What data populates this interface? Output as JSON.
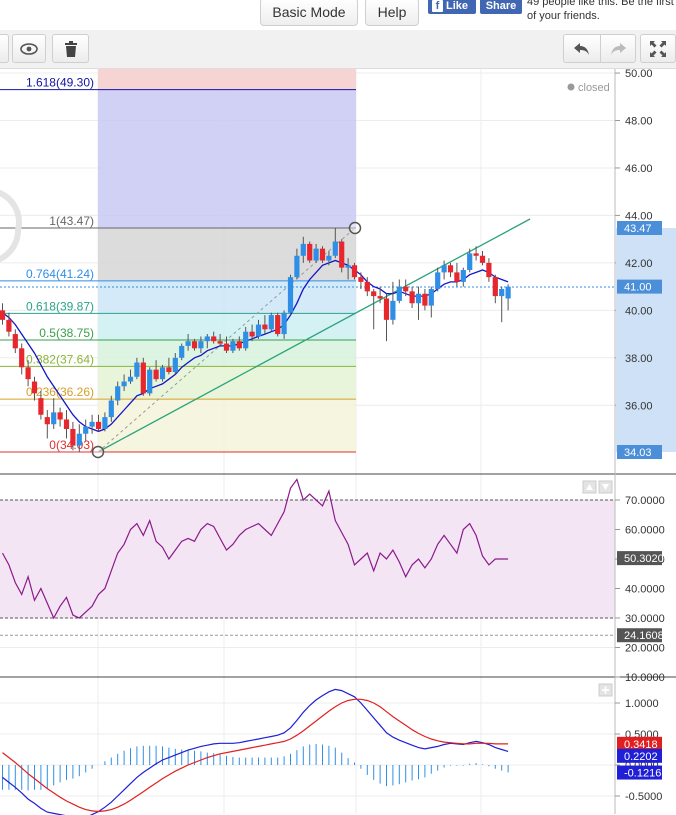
{
  "header": {
    "basic_mode_label": "Basic Mode",
    "help_label": "Help",
    "fb_like_label": "Like",
    "fb_share_label": "Share",
    "fb_text": "49 people like this. Be the first of your friends."
  },
  "toolbar": {
    "eye_icon": "eye-icon",
    "trash_icon": "trash-icon",
    "undo_icon": "undo-icon",
    "redo_icon": "redo-icon",
    "fullscreen_icon": "fullscreen-icon"
  },
  "colors": {
    "up_candle": "#2f8fe6",
    "down_candle": "#e8262d",
    "ma_line": "#1414c8",
    "rsi_line": "#8b1a8b",
    "macd_line": "#1f1fd6",
    "signal_line": "#e02020",
    "trendline": "#2aa37a"
  },
  "chart_data": [
    {
      "type": "candlestick",
      "status": "closed",
      "ylim": [
        34.0,
        50.0
      ],
      "y_ticks": [
        "50.00",
        "48.00",
        "46.00",
        "44.00",
        "42.00",
        "40.00",
        "38.00",
        "36.00"
      ],
      "price_badges": [
        {
          "label": "43.47",
          "value": 43.47,
          "color": "#4a8fd8"
        },
        {
          "label": "41.00",
          "value": 41.0,
          "color": "#4a8fd8"
        },
        {
          "label": "34.03",
          "value": 34.03,
          "color": "#4a8fd8"
        }
      ],
      "fibonacci": [
        {
          "label": "1.618(49.30)",
          "value": 49.3
        },
        {
          "label": "1(43.47)",
          "value": 43.47
        },
        {
          "label": "0.764(41.24)",
          "value": 41.24
        },
        {
          "label": "0.618(39.87)",
          "value": 39.87
        },
        {
          "label": "0.5(38.75)",
          "value": 38.75
        },
        {
          "label": "0.382(37.64)",
          "value": 37.64
        },
        {
          "label": "0.236(36.26)",
          "value": 36.26
        },
        {
          "label": "0(34.03)",
          "value": 34.03
        }
      ],
      "candles": [
        {
          "o": 40.0,
          "h": 40.3,
          "l": 39.4,
          "c": 39.6
        },
        {
          "o": 39.6,
          "h": 39.9,
          "l": 38.9,
          "c": 39.1
        },
        {
          "o": 39.0,
          "h": 39.2,
          "l": 38.2,
          "c": 38.4
        },
        {
          "o": 38.4,
          "h": 38.6,
          "l": 37.3,
          "c": 37.6
        },
        {
          "o": 37.6,
          "h": 37.9,
          "l": 36.8,
          "c": 37.1
        },
        {
          "o": 37.0,
          "h": 37.2,
          "l": 36.2,
          "c": 36.5
        },
        {
          "o": 36.3,
          "h": 36.6,
          "l": 35.4,
          "c": 35.6
        },
        {
          "o": 35.5,
          "h": 35.8,
          "l": 34.6,
          "c": 35.2
        },
        {
          "o": 35.2,
          "h": 36.3,
          "l": 35.0,
          "c": 35.7
        },
        {
          "o": 35.7,
          "h": 35.9,
          "l": 35.1,
          "c": 35.4
        },
        {
          "o": 35.4,
          "h": 35.8,
          "l": 34.6,
          "c": 35.0
        },
        {
          "o": 35.0,
          "h": 35.3,
          "l": 34.1,
          "c": 34.3
        },
        {
          "o": 34.3,
          "h": 35.2,
          "l": 34.03,
          "c": 34.8
        },
        {
          "o": 34.8,
          "h": 35.4,
          "l": 34.5,
          "c": 35.1
        },
        {
          "o": 35.1,
          "h": 35.6,
          "l": 34.8,
          "c": 35.3
        },
        {
          "o": 35.3,
          "h": 35.6,
          "l": 34.9,
          "c": 35.0
        },
        {
          "o": 35.0,
          "h": 35.7,
          "l": 34.9,
          "c": 35.5
        },
        {
          "o": 35.5,
          "h": 36.4,
          "l": 35.3,
          "c": 36.2
        },
        {
          "o": 36.2,
          "h": 37.0,
          "l": 36.0,
          "c": 36.8
        },
        {
          "o": 36.8,
          "h": 37.3,
          "l": 36.6,
          "c": 37.0
        },
        {
          "o": 37.0,
          "h": 37.5,
          "l": 36.9,
          "c": 37.2
        },
        {
          "o": 37.2,
          "h": 38.0,
          "l": 37.1,
          "c": 37.8
        },
        {
          "o": 37.8,
          "h": 38.0,
          "l": 36.4,
          "c": 36.5
        },
        {
          "o": 36.5,
          "h": 37.6,
          "l": 36.4,
          "c": 37.5
        },
        {
          "o": 37.5,
          "h": 37.9,
          "l": 37.0,
          "c": 37.1
        },
        {
          "o": 37.1,
          "h": 37.7,
          "l": 37.0,
          "c": 37.6
        },
        {
          "o": 37.6,
          "h": 38.0,
          "l": 37.3,
          "c": 37.4
        },
        {
          "o": 37.4,
          "h": 38.2,
          "l": 37.3,
          "c": 38.0
        },
        {
          "o": 38.0,
          "h": 38.6,
          "l": 37.9,
          "c": 38.5
        },
        {
          "o": 38.5,
          "h": 39.0,
          "l": 38.3,
          "c": 38.7
        },
        {
          "o": 38.7,
          "h": 38.8,
          "l": 38.3,
          "c": 38.4
        },
        {
          "o": 38.4,
          "h": 38.9,
          "l": 38.2,
          "c": 38.7
        },
        {
          "o": 38.7,
          "h": 39.0,
          "l": 38.4,
          "c": 38.9
        },
        {
          "o": 38.9,
          "h": 39.1,
          "l": 38.6,
          "c": 38.7
        },
        {
          "o": 38.7,
          "h": 39.0,
          "l": 38.5,
          "c": 38.6
        },
        {
          "o": 38.6,
          "h": 38.9,
          "l": 38.2,
          "c": 38.3
        },
        {
          "o": 38.3,
          "h": 38.8,
          "l": 38.2,
          "c": 38.7
        },
        {
          "o": 38.7,
          "h": 38.9,
          "l": 38.3,
          "c": 38.4
        },
        {
          "o": 38.4,
          "h": 39.3,
          "l": 38.3,
          "c": 39.1
        },
        {
          "o": 39.1,
          "h": 39.4,
          "l": 38.7,
          "c": 38.9
        },
        {
          "o": 38.9,
          "h": 39.6,
          "l": 38.8,
          "c": 39.4
        },
        {
          "o": 39.4,
          "h": 39.8,
          "l": 39.0,
          "c": 39.2
        },
        {
          "o": 39.2,
          "h": 39.9,
          "l": 39.1,
          "c": 39.8
        },
        {
          "o": 39.8,
          "h": 39.9,
          "l": 38.9,
          "c": 39.0
        },
        {
          "o": 39.0,
          "h": 40.0,
          "l": 38.8,
          "c": 39.9
        },
        {
          "o": 39.9,
          "h": 41.5,
          "l": 39.8,
          "c": 41.4
        },
        {
          "o": 41.4,
          "h": 42.6,
          "l": 41.3,
          "c": 42.3
        },
        {
          "o": 42.3,
          "h": 43.1,
          "l": 42.0,
          "c": 42.8
        },
        {
          "o": 42.8,
          "h": 42.9,
          "l": 42.0,
          "c": 42.1
        },
        {
          "o": 42.1,
          "h": 42.8,
          "l": 42.0,
          "c": 42.6
        },
        {
          "o": 42.6,
          "h": 42.7,
          "l": 42.0,
          "c": 42.1
        },
        {
          "o": 42.1,
          "h": 42.5,
          "l": 41.9,
          "c": 42.3
        },
        {
          "o": 42.3,
          "h": 43.47,
          "l": 42.2,
          "c": 42.9
        },
        {
          "o": 42.9,
          "h": 43.0,
          "l": 41.6,
          "c": 41.8
        },
        {
          "o": 41.8,
          "h": 42.2,
          "l": 41.3,
          "c": 41.9
        },
        {
          "o": 41.9,
          "h": 42.0,
          "l": 41.3,
          "c": 41.4
        },
        {
          "o": 41.4,
          "h": 41.6,
          "l": 40.9,
          "c": 41.2
        },
        {
          "o": 41.2,
          "h": 41.4,
          "l": 40.6,
          "c": 40.8
        },
        {
          "o": 40.8,
          "h": 40.9,
          "l": 39.2,
          "c": 40.6
        },
        {
          "o": 40.6,
          "h": 41.0,
          "l": 40.3,
          "c": 40.5
        },
        {
          "o": 40.5,
          "h": 40.7,
          "l": 38.7,
          "c": 39.6
        },
        {
          "o": 39.6,
          "h": 41.2,
          "l": 39.4,
          "c": 40.4
        },
        {
          "o": 40.4,
          "h": 41.3,
          "l": 40.3,
          "c": 41.0
        },
        {
          "o": 41.0,
          "h": 41.3,
          "l": 40.6,
          "c": 40.8
        },
        {
          "o": 40.8,
          "h": 41.0,
          "l": 40.1,
          "c": 40.3
        },
        {
          "o": 40.3,
          "h": 41.0,
          "l": 39.6,
          "c": 40.7
        },
        {
          "o": 40.7,
          "h": 40.9,
          "l": 40.0,
          "c": 40.2
        },
        {
          "o": 40.2,
          "h": 41.0,
          "l": 39.7,
          "c": 40.9
        },
        {
          "o": 40.9,
          "h": 41.8,
          "l": 40.8,
          "c": 41.6
        },
        {
          "o": 41.6,
          "h": 42.1,
          "l": 41.3,
          "c": 41.9
        },
        {
          "o": 41.9,
          "h": 42.0,
          "l": 41.4,
          "c": 41.6
        },
        {
          "o": 41.6,
          "h": 42.0,
          "l": 41.0,
          "c": 41.2
        },
        {
          "o": 41.2,
          "h": 41.8,
          "l": 41.0,
          "c": 41.7
        },
        {
          "o": 41.7,
          "h": 42.6,
          "l": 41.6,
          "c": 42.4
        },
        {
          "o": 42.4,
          "h": 42.7,
          "l": 42.1,
          "c": 42.3
        },
        {
          "o": 42.3,
          "h": 42.5,
          "l": 41.9,
          "c": 42.0
        },
        {
          "o": 42.0,
          "h": 42.2,
          "l": 41.2,
          "c": 41.4
        },
        {
          "o": 41.4,
          "h": 41.5,
          "l": 40.3,
          "c": 40.6
        },
        {
          "o": 40.6,
          "h": 41.0,
          "l": 39.5,
          "c": 40.9
        },
        {
          "o": 40.5,
          "h": 41.1,
          "l": 40.0,
          "c": 41.0
        }
      ],
      "ma": [
        39.9,
        39.7,
        39.4,
        39.0,
        38.6,
        38.2,
        37.7,
        37.2,
        36.8,
        36.4,
        36.0,
        35.6,
        35.3,
        35.1,
        35.0,
        34.9,
        35.0,
        35.2,
        35.5,
        35.8,
        36.1,
        36.4,
        36.5,
        36.7,
        36.8,
        36.9,
        37.1,
        37.3,
        37.6,
        37.8,
        38.0,
        38.1,
        38.3,
        38.4,
        38.5,
        38.5,
        38.5,
        38.6,
        38.7,
        38.8,
        38.9,
        39.0,
        39.1,
        39.2,
        39.4,
        39.8,
        40.3,
        40.9,
        41.3,
        41.6,
        41.9,
        42.0,
        42.1,
        42.0,
        41.9,
        41.7,
        41.5,
        41.2,
        41.0,
        40.9,
        40.7,
        40.7,
        40.8,
        40.7,
        40.6,
        40.6,
        40.6,
        40.7,
        40.9,
        41.1,
        41.2,
        41.2,
        41.3,
        41.5,
        41.6,
        41.7,
        41.6,
        41.4,
        41.3,
        41.2
      ]
    },
    {
      "type": "line",
      "name": "RSI",
      "ylim": [
        10,
        80
      ],
      "y_ticks": [
        "70.0000",
        "60.0000",
        "50.0000",
        "40.0000",
        "30.0000",
        "20.0000",
        "10.0000"
      ],
      "bands": [
        30,
        70
      ],
      "price_badges": [
        {
          "label": "50.3020",
          "value": 50.302,
          "color": "#555555"
        },
        {
          "label": "24.1608",
          "value": 24.1608,
          "color": "#555555"
        }
      ],
      "values": [
        52,
        48,
        42,
        38,
        44,
        36,
        40,
        35,
        30,
        34,
        37,
        31,
        30,
        32,
        34,
        38,
        40,
        46,
        52,
        55,
        60,
        62,
        58,
        63,
        56,
        54,
        50,
        53,
        56,
        57,
        56,
        60,
        62,
        61,
        57,
        53,
        55,
        58,
        60,
        61,
        62,
        60,
        58,
        62,
        66,
        74,
        77,
        70,
        72,
        70,
        68,
        73,
        63,
        59,
        55,
        48,
        50,
        52,
        46,
        52,
        50,
        53,
        49,
        44,
        48,
        50,
        47,
        50,
        55,
        58,
        55,
        52,
        60,
        62,
        58,
        51,
        48,
        50,
        50,
        50
      ],
      "series": [
        {
          "values": "see values"
        }
      ]
    },
    {
      "type": "line",
      "name": "MACD",
      "ylim": [
        -0.75,
        1.25
      ],
      "y_ticks": [
        "1.0000",
        "0.5000",
        "0.0000",
        "-0.5000"
      ],
      "price_badges": [
        {
          "label": "0.3418",
          "value": 0.3418,
          "color": "#e02020"
        },
        {
          "label": "0.2202",
          "value": 0.2202,
          "color": "#1f1fd6"
        },
        {
          "label": "-0.1216",
          "value": -0.1216,
          "color": "#1f1fd6"
        }
      ],
      "macd": [
        -0.2,
        -0.28,
        -0.36,
        -0.45,
        -0.55,
        -0.62,
        -0.7,
        -0.76,
        -0.78,
        -0.8,
        -0.82,
        -0.85,
        -0.86,
        -0.84,
        -0.8,
        -0.75,
        -0.68,
        -0.6,
        -0.5,
        -0.4,
        -0.3,
        -0.2,
        -0.12,
        -0.05,
        0.02,
        0.08,
        0.12,
        0.16,
        0.2,
        0.24,
        0.27,
        0.3,
        0.32,
        0.34,
        0.35,
        0.35,
        0.35,
        0.36,
        0.38,
        0.4,
        0.42,
        0.44,
        0.46,
        0.48,
        0.52,
        0.6,
        0.72,
        0.85,
        0.96,
        1.05,
        1.12,
        1.18,
        1.22,
        1.2,
        1.15,
        1.1,
        1.0,
        0.88,
        0.76,
        0.64,
        0.52,
        0.45,
        0.4,
        0.36,
        0.32,
        0.28,
        0.26,
        0.28,
        0.3,
        0.33,
        0.35,
        0.34,
        0.33,
        0.36,
        0.38,
        0.36,
        0.33,
        0.28,
        0.25,
        0.22
      ],
      "signal": [
        0.2,
        0.12,
        0.04,
        -0.05,
        -0.14,
        -0.22,
        -0.3,
        -0.38,
        -0.45,
        -0.52,
        -0.58,
        -0.63,
        -0.68,
        -0.72,
        -0.74,
        -0.75,
        -0.74,
        -0.72,
        -0.68,
        -0.63,
        -0.57,
        -0.5,
        -0.43,
        -0.36,
        -0.29,
        -0.22,
        -0.16,
        -0.1,
        -0.05,
        0.0,
        0.04,
        0.08,
        0.12,
        0.15,
        0.18,
        0.2,
        0.22,
        0.24,
        0.26,
        0.28,
        0.3,
        0.32,
        0.34,
        0.36,
        0.38,
        0.42,
        0.48,
        0.55,
        0.63,
        0.71,
        0.79,
        0.87,
        0.94,
        1.0,
        1.04,
        1.06,
        1.06,
        1.04,
        1.0,
        0.94,
        0.86,
        0.78,
        0.71,
        0.64,
        0.57,
        0.51,
        0.46,
        0.42,
        0.39,
        0.37,
        0.36,
        0.35,
        0.34,
        0.34,
        0.35,
        0.35,
        0.35,
        0.34,
        0.34,
        0.34
      ],
      "series": [
        {
          "values": "see macd"
        },
        {
          "values": "see signal"
        }
      ]
    }
  ]
}
